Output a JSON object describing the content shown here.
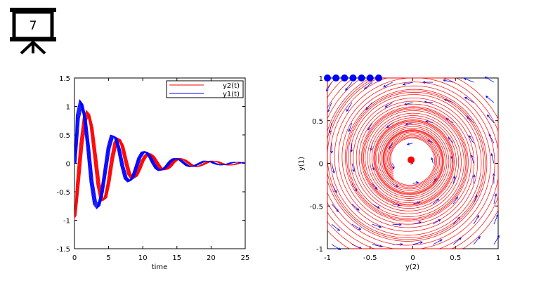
{
  "slide_number": "7",
  "chart_data": [
    {
      "type": "line",
      "title": "",
      "xlabel": "time",
      "ylabel": "",
      "xlim": [
        0,
        25
      ],
      "ylim": [
        -1.5,
        1.5
      ],
      "xticks": [
        "0",
        "5",
        "10",
        "15",
        "20",
        "25"
      ],
      "yticks": [
        "1.5",
        "1",
        "0.5",
        "0",
        "-0.5",
        "-1",
        "-1.5"
      ],
      "legend_position": "top-right",
      "series": [
        {
          "name": "y2(t)",
          "color": "#ff0000",
          "x": [
            0,
            0.5,
            1,
            1.5,
            2,
            2.5,
            3,
            3.5,
            4,
            4.5,
            5,
            5.5,
            6,
            6.5,
            7,
            7.5,
            8,
            8.5,
            9,
            9.5,
            10,
            10.5,
            11,
            11.5,
            12,
            12.5,
            13,
            13.5,
            14,
            14.5,
            15,
            15.5,
            16,
            16.5,
            17,
            17.5,
            18,
            18.5,
            19,
            19.5,
            20,
            20.5,
            21,
            21.5,
            22,
            22.5,
            23,
            23.5,
            24,
            24.5,
            25
          ],
          "values": [
            -1.0,
            -0.37,
            0.33,
            0.8,
            0.93,
            0.67,
            0.16,
            -0.37,
            -0.67,
            -0.65,
            -0.35,
            0.07,
            0.37,
            0.45,
            0.33,
            0.06,
            -0.19,
            -0.28,
            -0.24,
            -0.11,
            0.05,
            0.15,
            0.18,
            0.13,
            0.03,
            -0.07,
            -0.12,
            -0.11,
            -0.06,
            0.02,
            0.07,
            0.09,
            0.07,
            0.03,
            -0.02,
            -0.05,
            -0.06,
            -0.04,
            -0.01,
            0.02,
            0.04,
            0.04,
            0.03,
            0.0,
            -0.02,
            -0.03,
            -0.03,
            -0.02,
            0.0,
            0.01,
            0.02
          ]
        },
        {
          "name": "y1(t)",
          "color": "#0000ff",
          "x": [
            0,
            0.5,
            1,
            1.5,
            2,
            2.5,
            3,
            3.5,
            4,
            4.5,
            5,
            5.5,
            6,
            6.5,
            7,
            7.5,
            8,
            8.5,
            9,
            9.5,
            10,
            10.5,
            11,
            11.5,
            12,
            12.5,
            13,
            13.5,
            14,
            14.5,
            15,
            15.5,
            16,
            16.5,
            17,
            17.5,
            18,
            18.5,
            19,
            19.5,
            20,
            20.5,
            21,
            21.5,
            22,
            22.5,
            23,
            23.5,
            24,
            24.5,
            25
          ],
          "values": [
            0.0,
            0.85,
            1.12,
            0.85,
            0.3,
            -0.33,
            -0.72,
            -0.8,
            -0.55,
            -0.14,
            0.28,
            0.5,
            0.48,
            0.27,
            -0.04,
            -0.27,
            -0.33,
            -0.27,
            -0.09,
            0.1,
            0.2,
            0.21,
            0.13,
            0.01,
            -0.09,
            -0.13,
            -0.11,
            -0.05,
            0.03,
            0.08,
            0.09,
            0.06,
            0.01,
            -0.04,
            -0.06,
            -0.05,
            -0.02,
            0.01,
            0.04,
            0.04,
            0.03,
            0.0,
            -0.02,
            -0.03,
            -0.02,
            -0.01,
            0.01,
            0.02,
            0.02,
            0.01,
            0.0
          ]
        }
      ]
    },
    {
      "type": "phase_portrait",
      "title": "",
      "xlabel": "y(2)",
      "ylabel": "y(1)",
      "xlim": [
        -1,
        1
      ],
      "ylim": [
        -1,
        1
      ],
      "xticks": [
        "-1",
        "-0.5",
        "0",
        "0.5",
        "1"
      ],
      "yticks": [
        "1",
        "0.5",
        "0",
        "-0.5",
        "-1"
      ],
      "vector_field_color": "#0000ff",
      "trajectory_color": "#ff0000",
      "start_points_color": "#0000ff",
      "start_points": [
        [
          -1,
          1
        ],
        [
          -0.9,
          1
        ],
        [
          -0.8,
          1
        ],
        [
          -0.7,
          1
        ],
        [
          -0.6,
          1
        ],
        [
          -0.5,
          1
        ],
        [
          -0.4,
          1
        ]
      ],
      "end_point": [
        -0.02,
        0.04
      ]
    }
  ]
}
